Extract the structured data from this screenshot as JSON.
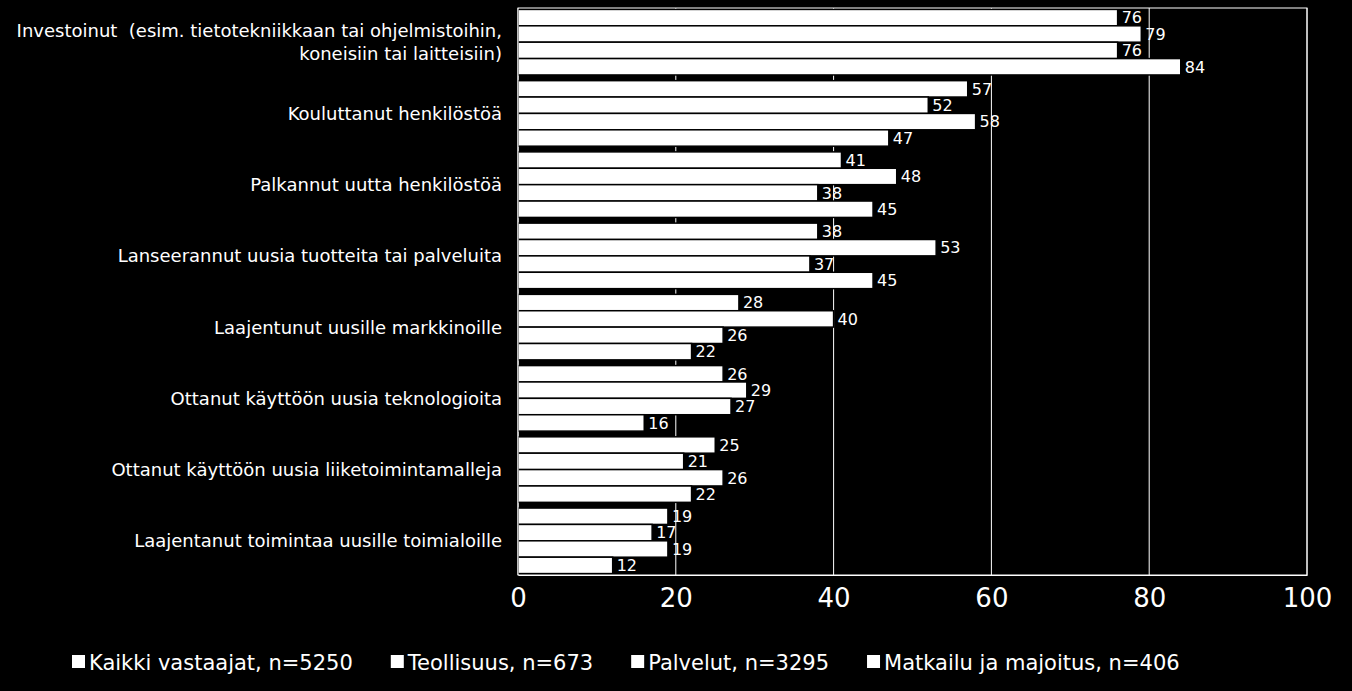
{
  "chart_data": {
    "type": "bar",
    "orientation": "horizontal",
    "categories": [
      "Investoinut  (esim. tietotekniikkaan tai ohjelmistoihin, koneisiin tai laitteisiin)",
      "Kouluttanut henkilöstöä",
      "Palkannut uutta henkilöstöä",
      "Lanseerannut uusia tuotteita tai palveluita",
      "Laajentunut uusille markkinoille",
      "Ottanut käyttöön uusia teknologioita",
      "Ottanut käyttöön uusia liiketoimintamalleja",
      "Laajentanut toimintaa uusille toimialoille"
    ],
    "series": [
      {
        "name": "Kaikki vastaajat, n=5250",
        "color": "#ffffff",
        "values": [
          76,
          57,
          41,
          38,
          28,
          26,
          25,
          19
        ]
      },
      {
        "name": "Teollisuus, n=673",
        "color": "#ffffff",
        "values": [
          79,
          52,
          48,
          53,
          40,
          29,
          21,
          17
        ]
      },
      {
        "name": "Palvelut, n=3295",
        "color": "#ffffff",
        "values": [
          76,
          58,
          38,
          37,
          26,
          27,
          26,
          19
        ]
      },
      {
        "name": "Matkailu ja majoitus, n=406",
        "color": "#ffffff",
        "values": [
          84,
          47,
          45,
          45,
          22,
          16,
          22,
          12
        ]
      }
    ],
    "xlim": [
      0,
      100
    ],
    "xticks": [
      0,
      20,
      40,
      60,
      80,
      100
    ],
    "grid": true,
    "data_labels": true,
    "legend": "bottom"
  }
}
